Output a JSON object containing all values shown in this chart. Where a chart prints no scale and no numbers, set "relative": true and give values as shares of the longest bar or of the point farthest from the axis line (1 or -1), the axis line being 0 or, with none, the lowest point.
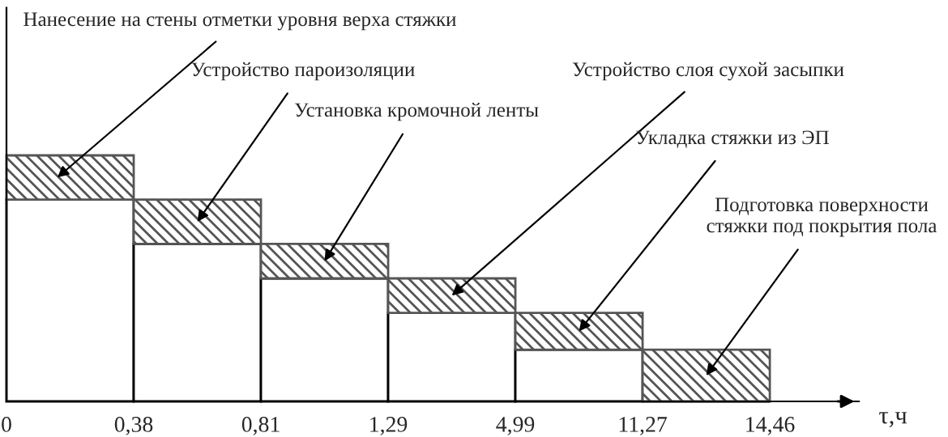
{
  "chart_data": {
    "type": "bar",
    "stacked": true,
    "relative": true,
    "categories": [
      null,
      null,
      null,
      null,
      null,
      null
    ],
    "xlabel": "τ,ч",
    "legend": false,
    "grid": false,
    "series": [
      {
        "color": "#ffffff",
        "values": [
          0.82,
          0.64,
          0.5,
          0.36,
          0.21,
          0
        ]
      },
      {
        "color": "#555555",
        "values": [
          0.18,
          0.18,
          0.14,
          0.14,
          0.15,
          0.21
        ]
      }
    ],
    "annotations": [
      "Нанесение на стены отметки уровня верха стяжки",
      "Устройство пароизоляции",
      "Установка кромочной ленты",
      "Устройство слоя сухой засыпки",
      "Укладка стяжки из ЭП",
      "Подготовка поверхности\nстяжки под покрытия пола",
      "0",
      "0,38",
      "0,81",
      "1,29",
      "4,99",
      "11,27",
      "14,46"
    ]
  }
}
